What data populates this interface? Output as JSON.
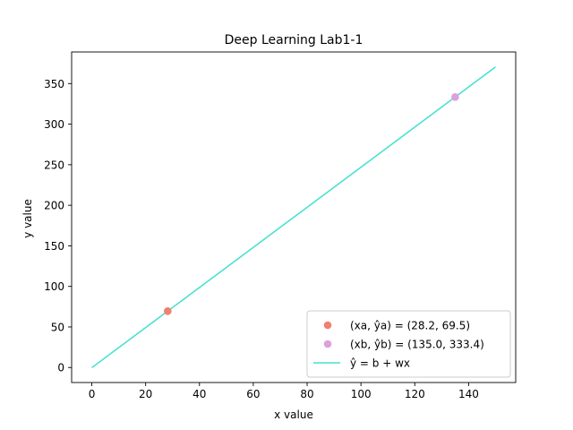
{
  "chart_data": {
    "type": "line",
    "title": "Deep Learning Lab1-1",
    "xlabel": "x value",
    "ylabel": "y value",
    "xlim": [
      -7.5,
      157.5
    ],
    "ylim": [
      -18.5,
      389.0
    ],
    "xticks": [
      0,
      20,
      40,
      60,
      80,
      100,
      120,
      140
    ],
    "yticks": [
      0,
      50,
      100,
      150,
      200,
      250,
      300,
      350
    ],
    "grid": false,
    "legend_position": "bottom-right",
    "series": [
      {
        "name": "(xa, ŷa) = (28.2, 69.5)",
        "kind": "scatter",
        "color": "#f08070",
        "points": [
          [
            28.2,
            69.5
          ]
        ]
      },
      {
        "name": "(xb, ŷb) = (135.0, 333.4)",
        "kind": "scatter",
        "color": "#dda0dd",
        "points": [
          [
            135.0,
            333.4
          ]
        ]
      },
      {
        "name": "ŷ = b + wx",
        "kind": "line",
        "color": "#40e0d0",
        "points": [
          [
            0,
            -0.19
          ],
          [
            150,
            370.5
          ]
        ]
      }
    ]
  }
}
